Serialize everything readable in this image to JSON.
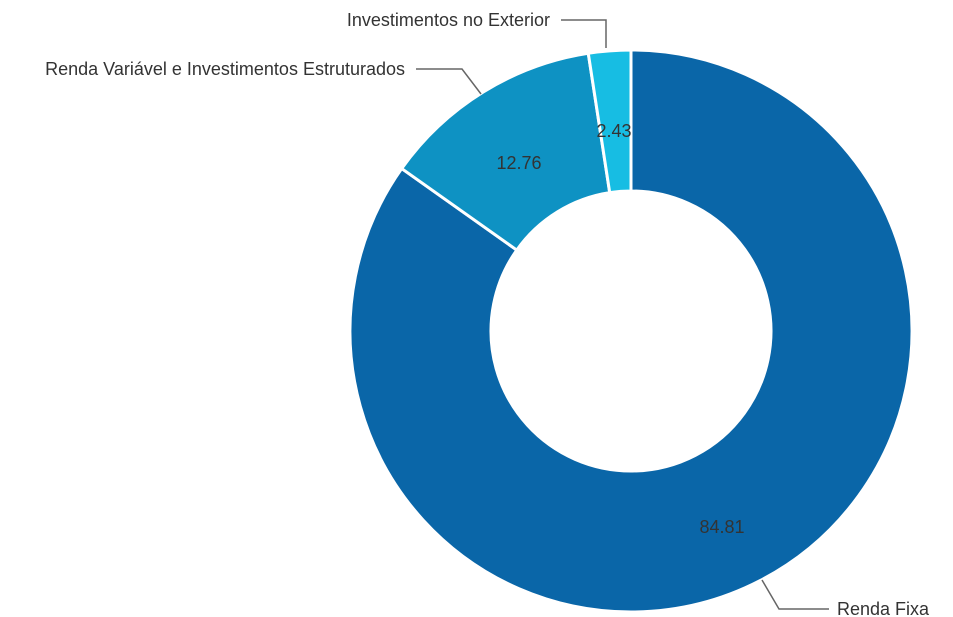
{
  "chart_data": {
    "type": "pie",
    "variant": "donut",
    "categories": [
      "Renda Fixa",
      "Renda Variável e Investimentos Estruturados",
      "Investimentos no Exterior"
    ],
    "values": [
      84.81,
      12.76,
      2.43
    ],
    "value_labels": [
      "84.81",
      "12.76",
      "2.43"
    ],
    "colors": [
      "#0a66a8",
      "#0e92c3",
      "#17bde3"
    ],
    "start_angle": "12 o'clock",
    "direction": "clockwise",
    "legend": "none",
    "callout_labels": true
  }
}
